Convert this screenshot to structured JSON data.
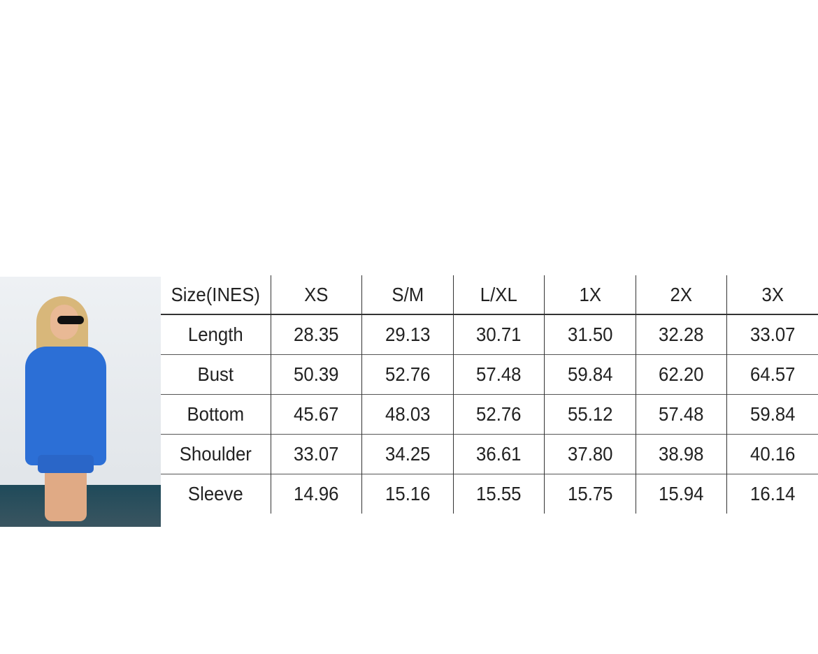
{
  "photo": {
    "subject": "model-in-blue-sweatshirt",
    "garment_color": "#2c6fd6"
  },
  "size_chart": {
    "headers": [
      "Size(INES)",
      "XS",
      "S/M",
      "L/XL",
      "1X",
      "2X",
      "3X"
    ],
    "rows": [
      [
        "Length",
        "28.35",
        "29.13",
        "30.71",
        "31.50",
        "32.28",
        "33.07"
      ],
      [
        "Bust",
        "50.39",
        "52.76",
        "57.48",
        "59.84",
        "62.20",
        "64.57"
      ],
      [
        "Bottom",
        "45.67",
        "48.03",
        "52.76",
        "55.12",
        "57.48",
        "59.84"
      ],
      [
        "Shoulder",
        "33.07",
        "34.25",
        "36.61",
        "37.80",
        "38.98",
        "40.16"
      ],
      [
        "Sleeve",
        "14.96",
        "15.16",
        "15.55",
        "15.75",
        "15.94",
        "16.14"
      ]
    ]
  }
}
